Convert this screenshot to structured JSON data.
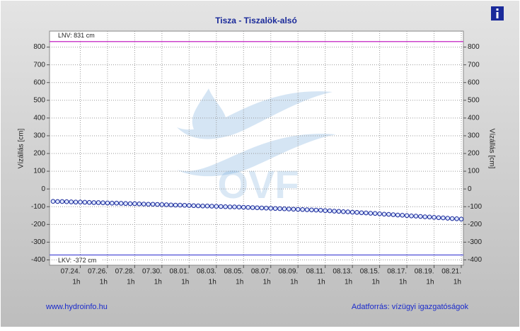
{
  "chart_data": {
    "type": "line",
    "title": "Tisza - Tiszalök-alsó",
    "y_label": "Vízállás [cm]",
    "x_hour_label": "1h",
    "categories": [
      null,
      null,
      null,
      null,
      null,
      null,
      "07.24.",
      null,
      null,
      null,
      null,
      null,
      "07.26.",
      null,
      null,
      null,
      null,
      null,
      "07.28.",
      null,
      null,
      null,
      null,
      null,
      "07.30.",
      null,
      null,
      null,
      null,
      null,
      "08.01.",
      null,
      null,
      null,
      null,
      null,
      "08.03.",
      null,
      null,
      null,
      null,
      null,
      "08.05.",
      null,
      null,
      null,
      null,
      null,
      "08.07.",
      null,
      null,
      null,
      null,
      null,
      "08.09.",
      null,
      null,
      null,
      null,
      null,
      "08.11.",
      null,
      null,
      null,
      null,
      null,
      "08.13.",
      null,
      null,
      null,
      null,
      null,
      "08.15.",
      null,
      null,
      null,
      null,
      null,
      "08.17.",
      null,
      null,
      null,
      null,
      null,
      "08.19.",
      null,
      null,
      null,
      null,
      null,
      "08.21."
    ],
    "series": [
      {
        "name": "Vízállás",
        "color": "#1a2a9a",
        "values": [
          -70,
          -71,
          -71,
          -72,
          -73,
          -74,
          -74,
          -75,
          -76,
          -77,
          -77,
          -78,
          -79,
          -80,
          -80,
          -81,
          -82,
          -83,
          -83,
          -84,
          -85,
          -86,
          -86,
          -87,
          -88,
          -89,
          -90,
          -91,
          -91,
          -92,
          -93,
          -94,
          -95,
          -96,
          -96,
          -97,
          -98,
          -99,
          -100,
          -101,
          -101,
          -102,
          -103,
          -104,
          -105,
          -106,
          -107,
          -108,
          -109,
          -110,
          -111,
          -112,
          -113,
          -114,
          -115,
          -116,
          -117,
          -118,
          -119,
          -120,
          -122,
          -123,
          -125,
          -126,
          -128,
          -129,
          -131,
          -132,
          -134,
          -135,
          -137,
          -138,
          -140,
          -142,
          -143,
          -145,
          -147,
          -148,
          -150,
          -152,
          -153,
          -155,
          -157,
          -158,
          -160,
          -162,
          -163,
          -165,
          -167,
          -168,
          -170
        ]
      }
    ],
    "ylim": [
      -430,
      890
    ],
    "yticks": [
      -400,
      -300,
      -200,
      -100,
      0,
      100,
      200,
      300,
      400,
      500,
      600,
      700,
      800
    ],
    "grid": true,
    "reference_lines": [
      {
        "label": "LNV: 831 cm",
        "value": 831,
        "color": "#cc44cc"
      },
      {
        "label": "LKV: -372 cm",
        "value": -372,
        "color": "#6666dd"
      }
    ],
    "watermark": "OVF",
    "footer_left": "www.hydroinfo.hu",
    "footer_right": "Adatforrás: vízügyi igazgatóságok"
  }
}
